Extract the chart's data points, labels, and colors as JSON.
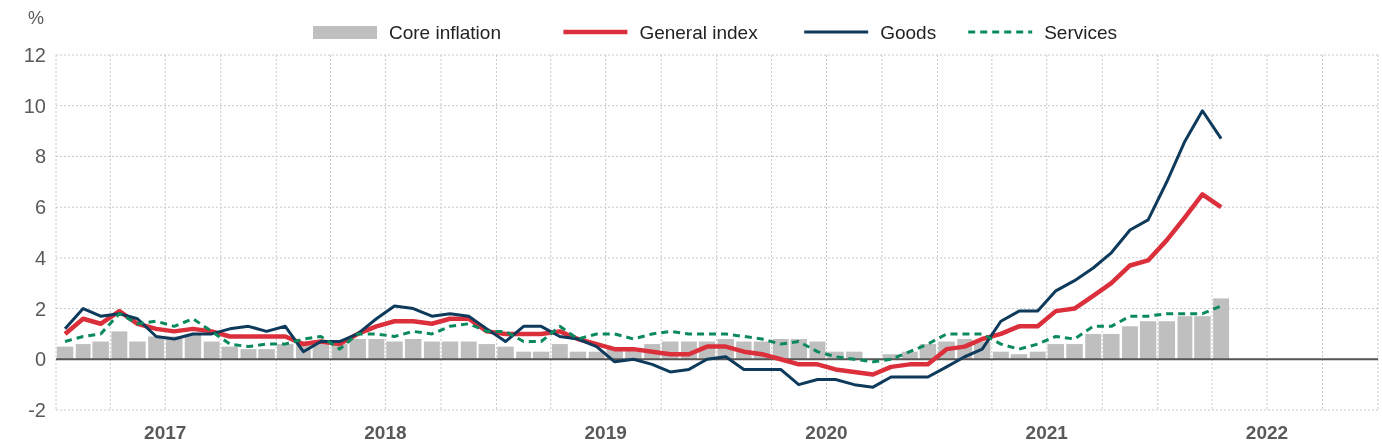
{
  "chart_data": {
    "type": "line",
    "ylabel": "%",
    "legend": "top",
    "grid": true,
    "x": [
      "2017-01-16",
      "2017-02-15",
      "2017-03-16",
      "2017-04-16",
      "2017-05-16",
      "2017-06-16",
      "2017-07-16",
      "2017-08-16",
      "2017-09-16",
      "2017-10-16",
      "2017-11-16",
      "2017-12-16",
      "2018-01-16",
      "2018-02-15",
      "2018-03-16",
      "2018-04-16",
      "2018-05-16",
      "2018-06-16",
      "2018-07-16",
      "2018-08-16",
      "2018-09-16",
      "2018-10-16",
      "2018-11-16",
      "2018-12-16",
      "2019-01-16",
      "2019-02-15",
      "2019-03-16",
      "2019-04-16",
      "2019-05-16",
      "2019-06-16",
      "2019-07-16",
      "2019-08-16",
      "2019-09-16",
      "2019-10-16",
      "2019-11-16",
      "2019-12-16",
      "2020-01-16",
      "2020-02-15",
      "2020-03-16",
      "2020-04-16",
      "2020-05-16",
      "2020-06-16",
      "2020-07-16",
      "2020-08-16",
      "2020-09-16",
      "2020-10-16",
      "2020-11-16",
      "2020-12-16",
      "2021-01-16",
      "2021-02-15",
      "2021-03-16",
      "2021-04-16",
      "2021-05-16",
      "2021-06-16",
      "2021-07-16",
      "2021-08-16",
      "2021-09-16",
      "2021-10-16",
      "2021-11-16",
      "2021-12-16",
      "2022-01-16",
      "2022-02-15",
      "2022-03-16",
      "2022-04-16"
    ],
    "xlim": [
      "2017-01",
      "2023-01"
    ],
    "xticks": [
      {
        "value": "2017-01",
        "label": null
      },
      {
        "value": "2017-04",
        "label": null
      },
      {
        "value": "2017-07",
        "label": "2017"
      },
      {
        "value": "2017-10",
        "label": null
      },
      {
        "value": "2018-01",
        "label": null
      },
      {
        "value": "2018-04",
        "label": null
      },
      {
        "value": "2018-07",
        "label": "2018"
      },
      {
        "value": "2018-10",
        "label": null
      },
      {
        "value": "2019-01",
        "label": null
      },
      {
        "value": "2019-04",
        "label": null
      },
      {
        "value": "2019-07",
        "label": "2019"
      },
      {
        "value": "2019-10",
        "label": null
      },
      {
        "value": "2020-01",
        "label": null
      },
      {
        "value": "2020-04",
        "label": null
      },
      {
        "value": "2020-07",
        "label": "2020"
      },
      {
        "value": "2020-10",
        "label": null
      },
      {
        "value": "2021-01",
        "label": null
      },
      {
        "value": "2021-04",
        "label": null
      },
      {
        "value": "2021-07",
        "label": "2021"
      },
      {
        "value": "2021-10",
        "label": null
      },
      {
        "value": "2022-01",
        "label": null
      },
      {
        "value": "2022-04",
        "label": null
      },
      {
        "value": "2022-07",
        "label": "2022"
      },
      {
        "value": "2022-10",
        "label": null
      },
      {
        "value": "2023-01",
        "label": null
      }
    ],
    "ylim": [
      -2,
      12
    ],
    "yticks": [
      -2,
      0,
      2,
      4,
      6,
      8,
      10,
      12
    ],
    "series": [
      {
        "name": "Core inflation",
        "type": "bar",
        "color": "#bfbfbf",
        "values": [
          0.5,
          0.6,
          0.7,
          1.1,
          0.7,
          0.9,
          0.9,
          1.0,
          0.7,
          0.5,
          0.4,
          0.4,
          0.6,
          0.7,
          0.6,
          0.6,
          0.8,
          0.8,
          0.7,
          0.8,
          0.7,
          0.7,
          0.7,
          0.6,
          0.5,
          0.3,
          0.3,
          0.6,
          0.3,
          0.3,
          0.4,
          0.4,
          0.6,
          0.7,
          0.7,
          0.7,
          0.8,
          0.7,
          0.7,
          0.8,
          0.8,
          0.7,
          0.3,
          0.3,
          0.0,
          0.2,
          0.3,
          0.6,
          0.7,
          0.8,
          0.7,
          0.3,
          0.2,
          0.3,
          0.6,
          0.6,
          1.0,
          1.0,
          1.3,
          1.5,
          1.5,
          1.7,
          1.7,
          2.4
        ]
      },
      {
        "name": "General index",
        "color": "#dc2f3c",
        "line_style": "solid",
        "values": [
          1.0,
          1.6,
          1.4,
          1.9,
          1.4,
          1.2,
          1.1,
          1.2,
          1.1,
          0.9,
          0.9,
          0.9,
          0.9,
          0.6,
          0.7,
          0.6,
          1.0,
          1.3,
          1.5,
          1.5,
          1.4,
          1.6,
          1.6,
          1.1,
          1.0,
          1.0,
          1.0,
          1.1,
          0.8,
          0.6,
          0.4,
          0.4,
          0.3,
          0.2,
          0.2,
          0.5,
          0.5,
          0.3,
          0.2,
          0.0,
          -0.2,
          -0.2,
          -0.4,
          -0.5,
          -0.6,
          -0.3,
          -0.2,
          -0.2,
          0.4,
          0.5,
          0.8,
          1.0,
          1.3,
          1.3,
          1.9,
          2.0,
          2.5,
          3.0,
          3.7,
          3.9,
          4.7,
          5.6,
          6.5,
          6.0
        ]
      },
      {
        "name": "Goods",
        "color": "#0e3a5c",
        "line_style": "solid",
        "values": [
          1.2,
          2.0,
          1.7,
          1.8,
          1.6,
          0.9,
          0.8,
          1.0,
          1.0,
          1.2,
          1.3,
          1.1,
          1.3,
          0.3,
          0.7,
          0.7,
          1.0,
          1.6,
          2.1,
          2.0,
          1.7,
          1.8,
          1.7,
          1.2,
          0.7,
          1.3,
          1.3,
          0.9,
          0.8,
          0.5,
          -0.1,
          0.0,
          -0.2,
          -0.5,
          -0.4,
          0.0,
          0.1,
          -0.4,
          -0.4,
          -0.4,
          -1.0,
          -0.8,
          -0.8,
          -1.0,
          -1.1,
          -0.7,
          -0.7,
          -0.7,
          -0.3,
          0.1,
          0.4,
          1.5,
          1.9,
          1.9,
          2.7,
          3.1,
          3.6,
          4.2,
          5.1,
          5.5,
          7.0,
          8.6,
          9.8,
          8.7
        ]
      },
      {
        "name": "Services",
        "color": "#0a8a5c",
        "line_style": "dashed",
        "values": [
          0.7,
          0.9,
          1.0,
          1.8,
          1.4,
          1.5,
          1.3,
          1.6,
          1.1,
          0.6,
          0.5,
          0.6,
          0.6,
          0.8,
          0.9,
          0.4,
          1.0,
          1.0,
          0.9,
          1.1,
          1.0,
          1.3,
          1.4,
          1.1,
          1.1,
          0.7,
          0.7,
          1.3,
          0.8,
          1.0,
          1.0,
          0.8,
          1.0,
          1.1,
          1.0,
          1.0,
          1.0,
          0.9,
          0.8,
          0.6,
          0.7,
          0.3,
          0.1,
          0.0,
          -0.1,
          0.0,
          0.3,
          0.6,
          1.0,
          1.0,
          1.0,
          0.6,
          0.4,
          0.6,
          0.9,
          0.8,
          1.3,
          1.3,
          1.7,
          1.7,
          1.8,
          1.8,
          1.8,
          2.1
        ]
      }
    ]
  }
}
